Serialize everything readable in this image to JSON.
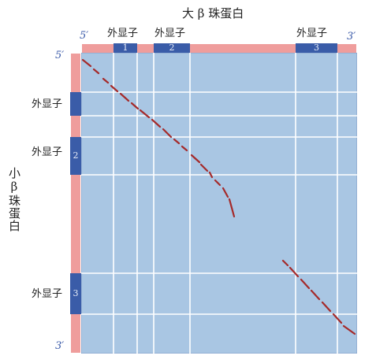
{
  "top_title": "大 β 珠蛋白",
  "left_title": "小β珠蛋白",
  "prime_5": "5′",
  "prime_3": "3′",
  "exon_label": "外显子",
  "top_exons": [
    {
      "label": "外显子",
      "number": "1"
    },
    {
      "label": "外显子",
      "number": "2"
    },
    {
      "label": "外显子",
      "number": "3"
    }
  ],
  "left_exons": [
    {
      "label": "外显子",
      "number": "1"
    },
    {
      "label": "外显子",
      "number": "2"
    },
    {
      "label": "外显子",
      "number": "3"
    }
  ],
  "colors": {
    "plot_bg": "#a9c6e3",
    "strip": "#ef9d9c",
    "exon": "#3a5ca8",
    "gridline": "#ffffff",
    "dots": "#a52a2a",
    "prime": "#3a5aa8"
  }
}
